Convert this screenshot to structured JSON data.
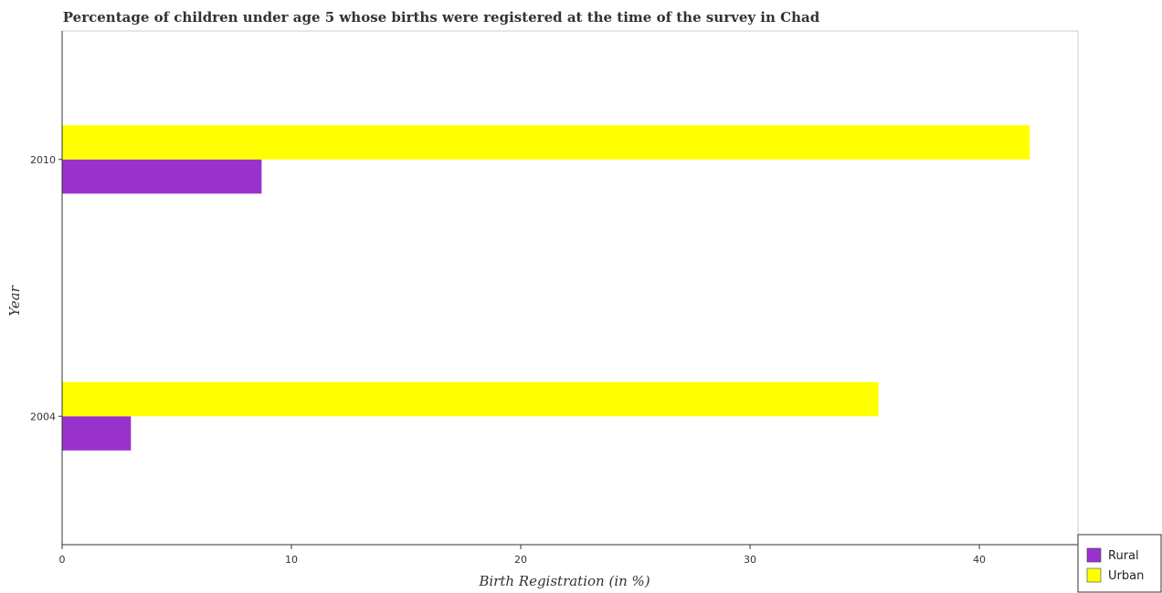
{
  "chart_data": {
    "type": "bar",
    "orientation": "horizontal",
    "title": "Percentage of children under age 5 whose births were registered at the time of the survey in Chad",
    "xlabel": "Birth Registration (in %)",
    "ylabel": "Year",
    "categories": [
      "2004",
      "2010"
    ],
    "series": [
      {
        "name": "Rural",
        "color": "#9932cc",
        "values": [
          3.0,
          8.7
        ]
      },
      {
        "name": "Urban",
        "color": "#ffff00",
        "values": [
          35.6,
          42.2
        ]
      }
    ],
    "xlim": [
      0,
      44.3
    ],
    "xticks": [
      0,
      10,
      20,
      30,
      40
    ],
    "grid": false,
    "legend_position": "bottom-right"
  }
}
